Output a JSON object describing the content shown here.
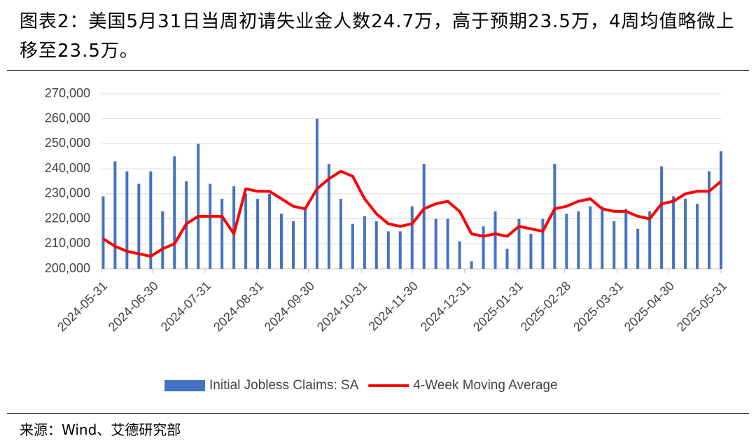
{
  "header": {
    "title": "图表2：美国5月31日当周初请失业金人数24.7万，高于预期23.5万，4周均值略微上移至23.5万。"
  },
  "chart_data": {
    "type": "bar",
    "x": [
      "2024-06-01",
      "2024-06-08",
      "2024-06-15",
      "2024-06-22",
      "2024-06-29",
      "2024-07-06",
      "2024-07-13",
      "2024-07-20",
      "2024-07-27",
      "2024-08-03",
      "2024-08-10",
      "2024-08-17",
      "2024-08-24",
      "2024-08-31",
      "2024-09-07",
      "2024-09-14",
      "2024-09-21",
      "2024-09-28",
      "2024-10-05",
      "2024-10-12",
      "2024-10-19",
      "2024-10-26",
      "2024-11-02",
      "2024-11-09",
      "2024-11-16",
      "2024-11-23",
      "2024-11-30",
      "2024-12-07",
      "2024-12-14",
      "2024-12-21",
      "2024-12-28",
      "2025-01-04",
      "2025-01-11",
      "2025-01-18",
      "2025-01-25",
      "2025-02-01",
      "2025-02-08",
      "2025-02-15",
      "2025-02-22",
      "2025-03-01",
      "2025-03-08",
      "2025-03-15",
      "2025-03-22",
      "2025-03-29",
      "2025-04-05",
      "2025-04-12",
      "2025-04-19",
      "2025-04-26",
      "2025-05-03",
      "2025-05-10",
      "2025-05-17",
      "2025-05-24",
      "2025-05-31"
    ],
    "series": [
      {
        "name": "Initial Jobless Claims: SA",
        "type": "bar",
        "color": "#4472c4",
        "values": [
          229000,
          243000,
          239000,
          234000,
          239000,
          223000,
          245000,
          235000,
          250000,
          234000,
          228000,
          233000,
          230000,
          228000,
          230000,
          222000,
          219000,
          224000,
          260000,
          242000,
          228000,
          218000,
          221000,
          219000,
          215000,
          215000,
          225000,
          242000,
          220000,
          220000,
          211000,
          203000,
          217000,
          223000,
          208000,
          220000,
          214000,
          220000,
          242000,
          222000,
          223000,
          225000,
          225000,
          219000,
          224000,
          216000,
          223000,
          241000,
          229000,
          228000,
          226000,
          239000,
          247000
        ]
      },
      {
        "name": "4-Week Moving Average",
        "type": "line",
        "color": "#ff0000",
        "values": [
          212000,
          209000,
          207000,
          206000,
          205000,
          208000,
          210000,
          218000,
          221000,
          221000,
          221000,
          214000,
          232000,
          231000,
          231000,
          228000,
          225000,
          224000,
          232000,
          236000,
          239000,
          237000,
          228000,
          222000,
          218000,
          217000,
          218000,
          224000,
          226000,
          227000,
          223000,
          214000,
          213000,
          214000,
          213000,
          217000,
          216000,
          215000,
          224000,
          225000,
          227000,
          228000,
          224000,
          223000,
          223000,
          221000,
          220000,
          226000,
          227000,
          230000,
          231000,
          231000,
          235000
        ]
      }
    ],
    "xlim": [
      "2024-05-31",
      "2025-05-31"
    ],
    "xticks": [
      "2024-05-31",
      "2024-06-30",
      "2024-07-31",
      "2024-08-31",
      "2024-09-30",
      "2024-10-31",
      "2024-11-30",
      "2024-12-31",
      "2025-01-31",
      "2025-02-28",
      "2025-03-31",
      "2025-04-30",
      "2025-05-31"
    ],
    "ylim": [
      200000,
      270000
    ],
    "yticks": [
      {
        "value": 200000,
        "label": "200,000"
      },
      {
        "value": 210000,
        "label": "210,000"
      },
      {
        "value": 220000,
        "label": "220,000"
      },
      {
        "value": 230000,
        "label": "230,000"
      },
      {
        "value": 240000,
        "label": "240,000"
      },
      {
        "value": 250000,
        "label": "250,000"
      },
      {
        "value": 260000,
        "label": "260,000"
      },
      {
        "value": 270000,
        "label": "270,000"
      }
    ],
    "grid": true,
    "legend": "bottom"
  },
  "footer": {
    "source": "来源：Wind、艾德研究部"
  }
}
